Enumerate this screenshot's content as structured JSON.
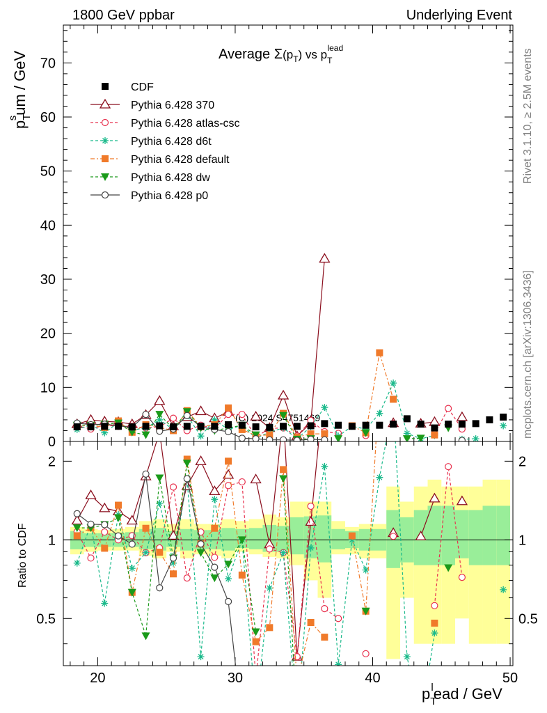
{
  "header": {
    "left": "1800 GeV ppbar",
    "right": "Underlying Event"
  },
  "side": {
    "rivet": "Rivet 3.1.10, ≥ 2.5M events",
    "mcplots": "mcplots.cern.ch [arXiv:1306.3436]"
  },
  "watermark": "(C) 2024 S4751469",
  "colors": {
    "cdf": "#000000",
    "p370": "#8b0f1e",
    "atlas": "#e8324f",
    "d6t": "#19b98a",
    "default": "#f07a2a",
    "dw": "#1a9a1a",
    "p0": "#444444",
    "band_yellow": "#ffff99",
    "band_green": "#99ee99"
  },
  "chart_data": {
    "type": "scatter",
    "title_parts": {
      "pre": "Average ",
      "sigma": "Σ",
      "pt": "(p",
      "pt_sub": "T",
      "pt_close": ")",
      "vs": " vs p",
      "sub": "T",
      "sup": "lead"
    },
    "xlabel": {
      "p": "p",
      "sub": "T",
      "sup": "l",
      "rest": "ead / GeV"
    },
    "ylabel": {
      "p": "p",
      "sub": "T",
      "sup": "s",
      "rest": "um / GeV"
    },
    "ratio_ylabel": "Ratio to CDF",
    "xlim": [
      17.5,
      50.2
    ],
    "ylim": [
      0,
      77
    ],
    "ratio_ylim": [
      0.33,
      2.38
    ],
    "xticks": [
      20,
      30,
      40,
      50
    ],
    "yticks": [
      0,
      10,
      20,
      30,
      40,
      50,
      60,
      70
    ],
    "ratio_yticks": [
      0.5,
      1,
      2
    ],
    "ratio_ytick_labels": [
      "0.5",
      "1",
      "2"
    ],
    "legend": [
      "CDF",
      "Pythia 6.428 370",
      "Pythia 6.428 atlas-csc",
      "Pythia 6.428 d6t",
      "Pythia 6.428 default",
      "Pythia 6.428 dw",
      "Pythia 6.428 p0"
    ],
    "x": [
      18.5,
      19.5,
      20.5,
      21.5,
      22.5,
      23.5,
      24.5,
      25.5,
      26.5,
      27.5,
      28.5,
      29.5,
      30.5,
      31.5,
      32.5,
      33.5,
      34.5,
      35.5,
      36.5,
      37.5,
      38.5,
      39.5,
      40.5,
      41.5,
      42.5,
      43.5,
      44.5,
      45.5,
      46.5,
      47.5,
      48.5,
      49.5
    ],
    "series": [
      {
        "name": "CDF",
        "key": "cdf",
        "line": "none",
        "marker": "square",
        "values": [
          2.7,
          2.7,
          2.8,
          2.8,
          2.7,
          2.8,
          2.9,
          2.7,
          2.8,
          2.8,
          2.8,
          3.1,
          3.0,
          2.7,
          2.6,
          2.8,
          2.8,
          2.9,
          3.3,
          3.0,
          2.8,
          3.0,
          3.0,
          3.2,
          4.2,
          3.2,
          2.5,
          3.2,
          3.2,
          3.3,
          4.0,
          4.5
        ]
      },
      {
        "name": "Pythia 6.428 370",
        "key": "p370",
        "line": "solid",
        "marker": "triangle-up-open",
        "values": [
          3.2,
          4.0,
          3.7,
          3.6,
          3.2,
          4.9,
          7.5,
          2.8,
          4.5,
          5.6,
          4.3,
          5.5,
          null,
          4.6,
          2.5,
          8.5,
          1.0,
          3.4,
          33.8,
          null,
          null,
          null,
          null,
          3.4,
          null,
          3.3,
          3.6,
          null,
          4.5,
          null,
          null,
          null
        ]
      },
      {
        "name": "Pythia 6.428 atlas-csc",
        "key": "atlas",
        "line": "dashed",
        "marker": "circle-open",
        "values": [
          2.9,
          2.3,
          3.0,
          2.8,
          2.8,
          2.5,
          2.7,
          4.3,
          2.0,
          3.0,
          2.4,
          5.0,
          5.0,
          0.8,
          2.4,
          2.5,
          1.0,
          3.9,
          1.8,
          1.5,
          null,
          1.1,
          null,
          3.3,
          null,
          null,
          1.4,
          6.1,
          2.3,
          null,
          null,
          null
        ]
      },
      {
        "name": "Pythia 6.428 d6t",
        "key": "d6t",
        "line": "dashed",
        "marker": "asterisk",
        "values": [
          2.2,
          3.1,
          1.6,
          3.5,
          2.1,
          2.5,
          4.0,
          2.2,
          4.8,
          1.0,
          4.0,
          2.2,
          3.0,
          0.6,
          1.7,
          2.5,
          0.5,
          2.7,
          6.3,
          1.0,
          2.8,
          2.3,
          5.2,
          10.8,
          1.5,
          0.5,
          1.1,
          null,
          0.4,
          0.5,
          null,
          2.9
        ]
      },
      {
        "name": "Pythia 6.428 default",
        "key": "default",
        "line": "dashdot",
        "marker": "square",
        "values": [
          2.8,
          3.0,
          2.6,
          3.8,
          1.7,
          3.1,
          2.6,
          2.0,
          5.7,
          2.7,
          3.1,
          6.2,
          2.2,
          1.1,
          1.2,
          5.2,
          0.8,
          1.4,
          1.4,
          null,
          2.9,
          1.6,
          16.4,
          7.8,
          null,
          null,
          1.2,
          null,
          null,
          null,
          null,
          null
        ]
      },
      {
        "name": "Pythia 6.428 dw",
        "key": "dw",
        "line": "dashed",
        "marker": "triangle-down",
        "values": [
          3.0,
          3.0,
          3.2,
          3.4,
          1.7,
          1.2,
          5.0,
          2.3,
          5.5,
          2.5,
          2.0,
          2.5,
          3.0,
          1.2,
          null,
          4.8,
          0.4,
          0.5,
          null,
          0.5,
          null,
          1.6,
          null,
          null,
          0.5,
          0.6,
          null,
          2.5,
          null,
          null,
          null,
          null
        ]
      },
      {
        "name": "Pythia 6.428 p0",
        "key": "p0",
        "line": "solid",
        "marker": "circle-open",
        "values": [
          3.4,
          3.1,
          3.2,
          2.9,
          2.6,
          5.0,
          1.9,
          2.3,
          4.8,
          2.7,
          2.2,
          1.8,
          0.6,
          0.5,
          0.3,
          0.3,
          0.2,
          0.4,
          0.3,
          null,
          null,
          null,
          null,
          null,
          null,
          null,
          null,
          null,
          0.2,
          null,
          null,
          null
        ]
      }
    ],
    "ratio_band": {
      "yellow_lo": [
        0.88,
        0.9,
        0.91,
        0.91,
        0.91,
        0.87,
        0.85,
        0.9,
        0.85,
        0.88,
        0.87,
        0.85,
        0.9,
        0.88,
        0.86,
        0.85,
        0.8,
        0.7,
        0.6,
        0.88,
        0.88,
        0.85,
        0.85,
        0.35,
        0.6,
        0.4,
        0.4,
        0.4,
        0.5,
        0.4,
        0.4,
        0.4
      ],
      "yellow_hi": [
        1.12,
        1.1,
        1.09,
        1.1,
        1.12,
        1.18,
        1.2,
        1.15,
        1.2,
        1.15,
        1.15,
        1.2,
        1.18,
        1.2,
        1.25,
        1.22,
        1.4,
        1.4,
        1.4,
        1.18,
        1.12,
        1.15,
        1.15,
        1.6,
        1.4,
        1.6,
        1.7,
        1.6,
        1.6,
        1.6,
        1.7,
        1.7
      ],
      "green_lo": [
        0.92,
        0.94,
        0.94,
        0.94,
        0.94,
        0.92,
        0.91,
        0.94,
        0.91,
        0.92,
        0.92,
        0.91,
        0.93,
        0.92,
        0.9,
        0.9,
        0.88,
        0.85,
        0.82,
        0.92,
        0.93,
        0.91,
        0.91,
        0.78,
        0.82,
        0.8,
        0.8,
        0.8,
        0.85,
        0.8,
        0.8,
        0.8
      ],
      "green_hi": [
        1.08,
        1.06,
        1.06,
        1.06,
        1.07,
        1.1,
        1.11,
        1.08,
        1.1,
        1.09,
        1.09,
        1.11,
        1.1,
        1.11,
        1.14,
        1.13,
        1.22,
        1.23,
        1.24,
        1.1,
        1.08,
        1.1,
        1.1,
        1.3,
        1.22,
        1.3,
        1.35,
        1.35,
        1.3,
        1.3,
        1.35,
        1.35
      ]
    }
  }
}
